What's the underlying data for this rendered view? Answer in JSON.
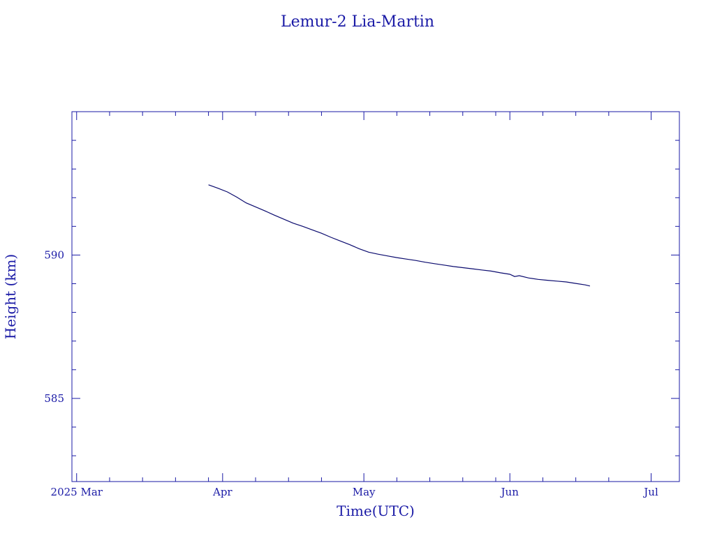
{
  "chart_data": {
    "type": "line",
    "title": "Lemur-2 Lia-Martin",
    "xlabel": "Time(UTC)",
    "ylabel": "Height (km)",
    "x_tick_labels": [
      "2025 Mar",
      "Apr",
      "May",
      "Jun",
      "Jul"
    ],
    "x_tick_dates": [
      "2025-03-01",
      "2025-04-01",
      "2025-05-01",
      "2025-06-01",
      "2025-07-01"
    ],
    "y_tick_labels": [
      "585",
      "590"
    ],
    "y_tick_values": [
      585,
      590
    ],
    "xlim": [
      "2025-02-28",
      "2025-07-07"
    ],
    "ylim": [
      582.1,
      595.0
    ],
    "grid": false,
    "colors": {
      "axis": "#1a1aa6",
      "line": "#0a0a6e",
      "text": "#1a1aa6"
    },
    "series": [
      {
        "x": [
          "2025-03-29",
          "2025-03-31",
          "2025-04-02",
          "2025-04-04",
          "2025-04-06",
          "2025-04-08",
          "2025-04-10",
          "2025-04-12",
          "2025-04-14",
          "2025-04-16",
          "2025-04-18",
          "2025-04-20",
          "2025-04-22",
          "2025-04-24",
          "2025-04-26",
          "2025-04-28",
          "2025-04-30",
          "2025-05-02",
          "2025-05-04",
          "2025-05-06",
          "2025-05-08",
          "2025-05-10",
          "2025-05-12",
          "2025-05-14",
          "2025-05-16",
          "2025-05-18",
          "2025-05-20",
          "2025-05-22",
          "2025-05-24",
          "2025-05-26",
          "2025-05-28",
          "2025-05-30",
          "2025-06-01",
          "2025-06-02",
          "2025-06-03",
          "2025-06-05",
          "2025-06-07",
          "2025-06-09",
          "2025-06-11",
          "2025-06-13",
          "2025-06-15",
          "2025-06-17",
          "2025-06-18"
        ],
        "y": [
          592.45,
          592.33,
          592.2,
          592.02,
          591.82,
          591.68,
          591.54,
          591.39,
          591.25,
          591.11,
          591.0,
          590.88,
          590.76,
          590.62,
          590.49,
          590.36,
          590.22,
          590.1,
          590.03,
          589.97,
          589.91,
          589.86,
          589.81,
          589.75,
          589.7,
          589.65,
          589.6,
          589.56,
          589.52,
          589.48,
          589.44,
          589.38,
          589.33,
          589.25,
          589.28,
          589.2,
          589.15,
          589.12,
          589.09,
          589.06,
          589.01,
          588.96,
          588.92
        ]
      }
    ]
  }
}
